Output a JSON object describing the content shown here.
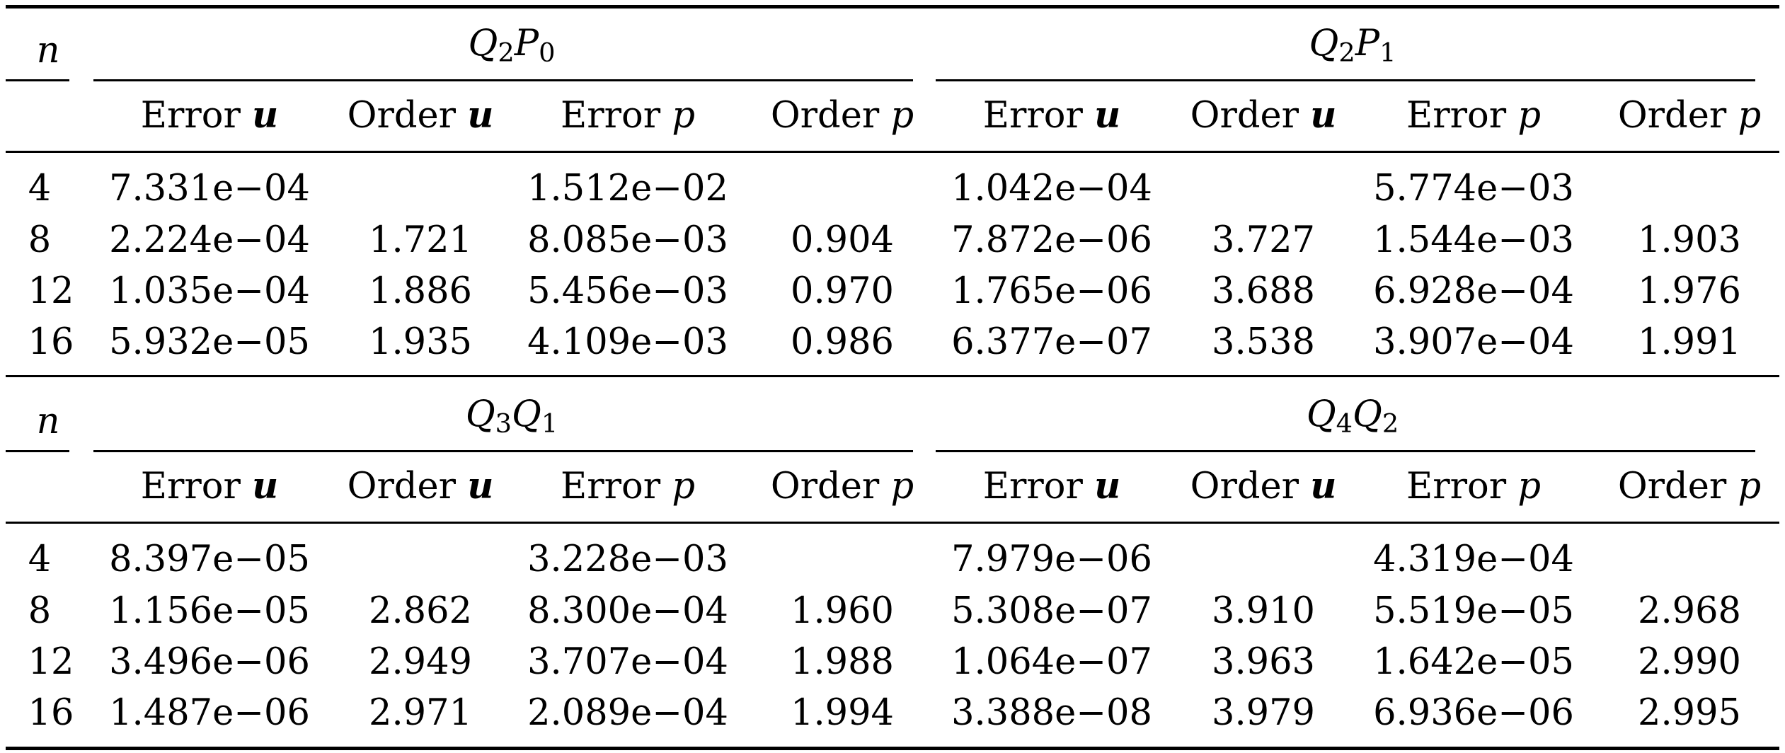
{
  "table": {
    "n_label": "n",
    "col_headers": {
      "error_word": "Error",
      "order_word": "Order",
      "u_symbol": "u",
      "p_symbol": "p"
    },
    "blocks": [
      {
        "groups": [
          {
            "name_main": "Q",
            "name_sub1": "2",
            "name_main2": "P",
            "name_sub2": "0"
          },
          {
            "name_main": "Q",
            "name_sub1": "2",
            "name_main2": "P",
            "name_sub2": "1"
          }
        ],
        "rows": [
          {
            "n": "4",
            "cells": [
              "7.331e−04",
              "",
              "1.512e−02",
              "",
              "1.042e−04",
              "",
              "5.774e−03",
              ""
            ]
          },
          {
            "n": "8",
            "cells": [
              "2.224e−04",
              "1.721",
              "8.085e−03",
              "0.904",
              "7.872e−06",
              "3.727",
              "1.544e−03",
              "1.903"
            ]
          },
          {
            "n": "12",
            "cells": [
              "1.035e−04",
              "1.886",
              "5.456e−03",
              "0.970",
              "1.765e−06",
              "3.688",
              "6.928e−04",
              "1.976"
            ]
          },
          {
            "n": "16",
            "cells": [
              "5.932e−05",
              "1.935",
              "4.109e−03",
              "0.986",
              "6.377e−07",
              "3.538",
              "3.907e−04",
              "1.991"
            ]
          }
        ]
      },
      {
        "groups": [
          {
            "name_main": "Q",
            "name_sub1": "3",
            "name_main2": "Q",
            "name_sub2": "1"
          },
          {
            "name_main": "Q",
            "name_sub1": "4",
            "name_main2": "Q",
            "name_sub2": "2"
          }
        ],
        "rows": [
          {
            "n": "4",
            "cells": [
              "8.397e−05",
              "",
              "3.228e−03",
              "",
              "7.979e−06",
              "",
              "4.319e−04",
              ""
            ]
          },
          {
            "n": "8",
            "cells": [
              "1.156e−05",
              "2.862",
              "8.300e−04",
              "1.960",
              "5.308e−07",
              "3.910",
              "5.519e−05",
              "2.968"
            ]
          },
          {
            "n": "12",
            "cells": [
              "3.496e−06",
              "2.949",
              "3.707e−04",
              "1.988",
              "1.064e−07",
              "3.963",
              "1.642e−05",
              "2.990"
            ]
          },
          {
            "n": "16",
            "cells": [
              "1.487e−06",
              "2.971",
              "2.089e−04",
              "1.994",
              "3.388e−08",
              "3.979",
              "6.936e−06",
              "2.995"
            ]
          }
        ]
      }
    ]
  }
}
